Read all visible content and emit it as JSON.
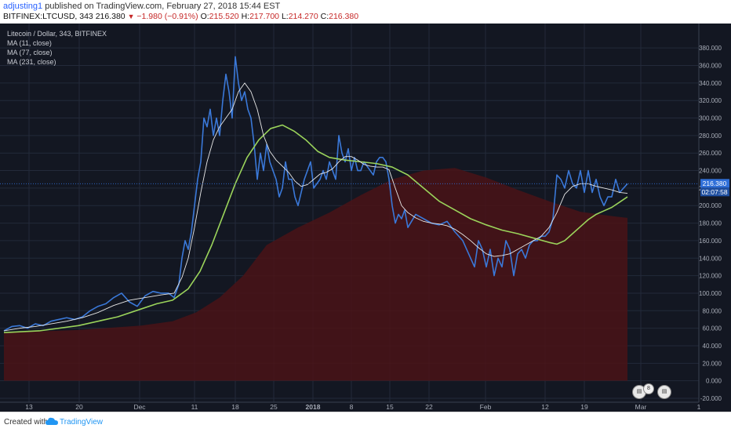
{
  "header": {
    "author": "adjusting1",
    "published": "published on TradingView.com, February 27, 2018 15:44 EST"
  },
  "quote": {
    "symbol": "BITFINEX:LTCUSD, 343",
    "last": "216.380",
    "change": "−1.980 (−0.91%)",
    "o_label": "O:",
    "o": "215.520",
    "h_label": "H:",
    "h": "217.700",
    "l_label": "L:",
    "l": "214.270",
    "c_label": "C:",
    "c": "216.380"
  },
  "legend": {
    "title": "Litecoin / Dollar, 343, BITFINEX",
    "ma1": "MA (11, close)",
    "ma2": "MA (77, close)",
    "ma3": "MA (231, close)"
  },
  "price_label": "216.380",
  "countdown_label": "02:07:58",
  "footer": {
    "created": "Created with",
    "brand": "TradingView"
  },
  "colors": {
    "background": "#131722",
    "price_line": "#3a78d8",
    "ma_fast": "#e8e8e8",
    "ma_mid": "#9bd45b",
    "ma_slow_fill": "#4a1316",
    "grid": "#232a3a",
    "price_badge": "#2f6fd8"
  },
  "chart_data": {
    "type": "line",
    "ylim": [
      -20,
      390
    ],
    "x_range": [
      0,
      890
    ],
    "y_ticks": [
      "380.000",
      "360.000",
      "340.000",
      "320.000",
      "300.000",
      "280.000",
      "260.000",
      "240.000",
      "220.000",
      "200.000",
      "180.000",
      "160.000",
      "140.000",
      "120.000",
      "100.000",
      "80.000",
      "60.000",
      "40.000",
      "20.000",
      "0.000",
      "-20.000"
    ],
    "y_tick_values": [
      380,
      360,
      340,
      320,
      300,
      280,
      260,
      240,
      220,
      200,
      180,
      160,
      140,
      120,
      100,
      80,
      60,
      40,
      20,
      0,
      -20
    ],
    "x_ticks": [
      {
        "label": "13",
        "x": 37
      },
      {
        "label": "20",
        "x": 101
      },
      {
        "label": "Dec",
        "x": 178
      },
      {
        "label": "11",
        "x": 248
      },
      {
        "label": "18",
        "x": 300
      },
      {
        "label": "25",
        "x": 349
      },
      {
        "label": "2018",
        "x": 399
      },
      {
        "label": "8",
        "x": 448
      },
      {
        "label": "15",
        "x": 497
      },
      {
        "label": "22",
        "x": 547
      },
      {
        "label": "Feb",
        "x": 619
      },
      {
        "label": "12",
        "x": 695
      },
      {
        "label": "19",
        "x": 745
      },
      {
        "label": "Mar",
        "x": 817
      },
      {
        "label": "1",
        "x": 891
      }
    ],
    "series": [
      {
        "name": "",
        "key": "price",
        "x": [
          5,
          15,
          25,
          35,
          45,
          55,
          65,
          75,
          85,
          95,
          105,
          115,
          125,
          135,
          145,
          155,
          165,
          175,
          185,
          195,
          205,
          215,
          222,
          228,
          232,
          236,
          240,
          244,
          248,
          252,
          256,
          260,
          264,
          268,
          272,
          276,
          280,
          284,
          288,
          292,
          296,
          300,
          304,
          308,
          312,
          316,
          320,
          324,
          328,
          332,
          336,
          340,
          344,
          348,
          352,
          356,
          360,
          364,
          368,
          372,
          376,
          380,
          384,
          388,
          392,
          396,
          400,
          404,
          408,
          412,
          416,
          420,
          424,
          428,
          432,
          436,
          440,
          444,
          448,
          452,
          456,
          460,
          464,
          468,
          472,
          476,
          480,
          484,
          488,
          492,
          496,
          500,
          504,
          508,
          512,
          516,
          520,
          530,
          540,
          550,
          560,
          570,
          580,
          590,
          600,
          605,
          610,
          615,
          620,
          625,
          630,
          635,
          640,
          645,
          650,
          655,
          660,
          665,
          670,
          675,
          680,
          685,
          690,
          695,
          700,
          705,
          710,
          715,
          720,
          725,
          730,
          735,
          740,
          745,
          750,
          755,
          760,
          765,
          770,
          775,
          780,
          785,
          790,
          795,
          800
        ],
        "y": [
          57,
          62,
          63,
          60,
          65,
          63,
          68,
          70,
          72,
          70,
          73,
          80,
          85,
          88,
          95,
          100,
          90,
          85,
          97,
          102,
          100,
          100,
          95,
          110,
          140,
          160,
          150,
          170,
          200,
          230,
          250,
          300,
          290,
          310,
          280,
          300,
          280,
          320,
          350,
          330,
          300,
          370,
          340,
          320,
          330,
          310,
          300,
          270,
          230,
          260,
          240,
          270,
          250,
          240,
          230,
          210,
          220,
          250,
          230,
          230,
          210,
          200,
          215,
          230,
          240,
          250,
          220,
          225,
          230,
          240,
          230,
          250,
          240,
          230,
          280,
          260,
          250,
          265,
          240,
          255,
          240,
          240,
          250,
          245,
          240,
          235,
          250,
          255,
          255,
          250,
          230,
          200,
          180,
          190,
          185,
          195,
          175,
          190,
          185,
          180,
          178,
          182,
          170,
          160,
          140,
          130,
          160,
          150,
          130,
          150,
          120,
          140,
          130,
          160,
          150,
          120,
          145,
          150,
          140,
          155,
          160,
          160,
          165,
          165,
          170,
          185,
          235,
          230,
          220,
          240,
          225,
          220,
          240,
          215,
          240,
          215,
          230,
          210,
          200,
          210,
          210,
          230,
          215,
          220,
          225
        ]
      },
      {
        "name": "MA (11, close)",
        "key": "ma11",
        "x": [
          5,
          25,
          45,
          65,
          85,
          105,
          125,
          145,
          165,
          185,
          205,
          222,
          232,
          240,
          248,
          256,
          264,
          272,
          280,
          288,
          296,
          304,
          312,
          320,
          328,
          336,
          344,
          352,
          360,
          368,
          376,
          384,
          392,
          400,
          408,
          416,
          424,
          432,
          440,
          448,
          456,
          464,
          472,
          480,
          488,
          496,
          504,
          512,
          520,
          530,
          540,
          550,
          560,
          570,
          580,
          590,
          600,
          610,
          620,
          630,
          640,
          650,
          660,
          670,
          680,
          690,
          700,
          710,
          720,
          730,
          740,
          750,
          760,
          770,
          780,
          790,
          800
        ],
        "y": [
          57,
          60,
          62,
          65,
          68,
          72,
          78,
          86,
          92,
          95,
          98,
          100,
          118,
          140,
          175,
          215,
          250,
          275,
          290,
          300,
          310,
          330,
          340,
          330,
          310,
          280,
          262,
          252,
          245,
          238,
          228,
          222,
          224,
          230,
          236,
          238,
          242,
          250,
          256,
          256,
          252,
          247,
          245,
          244,
          244,
          241,
          220,
          200,
          192,
          186,
          182,
          180,
          179,
          177,
          173,
          167,
          160,
          152,
          145,
          142,
          143,
          145,
          150,
          155,
          160,
          165,
          175,
          192,
          213,
          222,
          225,
          225,
          222,
          220,
          218,
          215,
          214
        ]
      },
      {
        "name": "MA (77, close)",
        "key": "ma77",
        "x": [
          5,
          50,
          100,
          150,
          180,
          200,
          220,
          240,
          255,
          270,
          285,
          300,
          315,
          330,
          345,
          360,
          375,
          390,
          405,
          420,
          440,
          460,
          480,
          500,
          520,
          540,
          560,
          580,
          600,
          620,
          640,
          660,
          680,
          700,
          710,
          720,
          730,
          740,
          750,
          760,
          770,
          780,
          790,
          800
        ],
        "y": [
          55,
          57,
          63,
          73,
          82,
          88,
          92,
          105,
          125,
          155,
          190,
          225,
          255,
          275,
          288,
          292,
          285,
          275,
          262,
          255,
          252,
          250,
          248,
          244,
          235,
          220,
          205,
          195,
          185,
          178,
          172,
          168,
          163,
          158,
          156,
          160,
          168,
          176,
          184,
          190,
          194,
          198,
          204,
          210
        ]
      },
      {
        "name": "MA (231, close)",
        "key": "ma231",
        "x": [
          5,
          100,
          180,
          220,
          250,
          280,
          310,
          340,
          380,
          420,
          460,
          500,
          540,
          580,
          620,
          660,
          700,
          740,
          780,
          800
        ],
        "y": [
          55,
          58,
          63,
          68,
          78,
          95,
          120,
          155,
          175,
          192,
          212,
          230,
          240,
          243,
          232,
          218,
          205,
          193,
          188,
          186
        ]
      }
    ]
  }
}
